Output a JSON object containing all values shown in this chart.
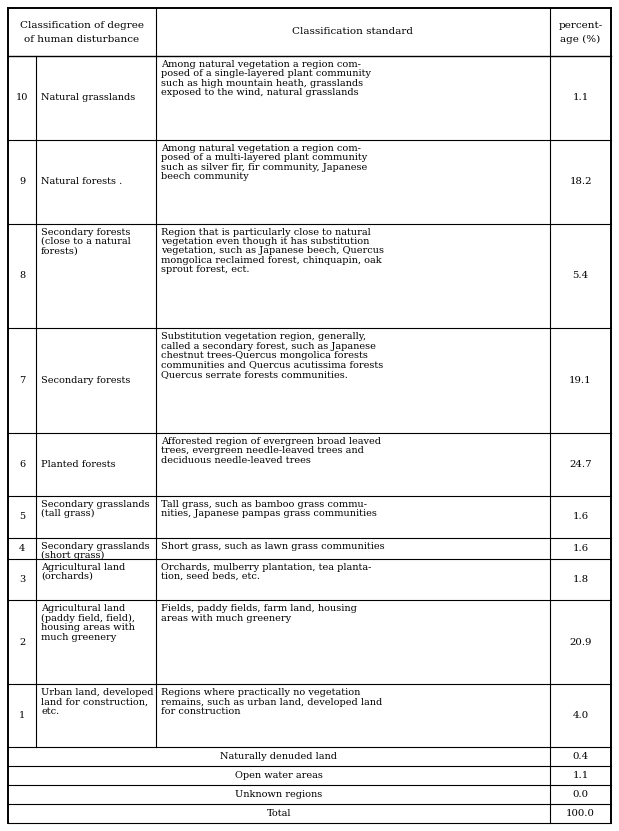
{
  "col_header_left": "Classification of degree\nof human disturbance",
  "col_header_mid": "Classification standard",
  "col_header_right": "percent-\nage (%)",
  "rows": [
    {
      "degree": "10",
      "name": "Natural grasslands",
      "standard": "Among natural vegetation a region com-\nposed of a single-layered plant community\nsuch as high mountain heath, grasslands\nexposed to the wind, natural grasslands",
      "pct": "1.1",
      "std_italic_parts": []
    },
    {
      "degree": "9",
      "name": "Natural forests .",
      "standard": "Among natural vegetation a region com-\nposed of a multi-layered plant community\nsuch as silver fir, fir community, Japanese\nbeech community",
      "pct": "18.2",
      "std_italic_parts": []
    },
    {
      "degree": "8",
      "name": "Secondary forests\n(close to a natural\nforests)",
      "standard": "Region that is particularly close to natural\nvegetation even though it has substitution\nvegetation, such as Japanese beech, Quercus\nmongolica reclaimed forest, chinquapin, oak\nsprout forest, ect.",
      "pct": "5.4",
      "std_italic_parts": []
    },
    {
      "degree": "7",
      "name": "Secondary forests",
      "standard": "Substitution vegetation region, generally,\ncalled a secondary forest, such as Japanese\nchestnut trees-Quercus mongolica forests\ncommunities and Quercus acutissima forests\nQuercus serrate forests communities.",
      "pct": "19.1",
      "std_italic_parts": []
    },
    {
      "degree": "6",
      "name": "Planted forests",
      "standard": "Afforested region of evergreen broad leaved\ntrees, evergreen needle-leaved trees and\ndeciduous needle-leaved trees",
      "pct": "24.7",
      "std_italic_parts": []
    },
    {
      "degree": "5",
      "name": "Secondary grasslands\n(tall grass)",
      "standard": "Tall grass, such as bamboo grass commu-\nnities, Japanese pampas grass communities",
      "pct": "1.6",
      "std_italic_parts": []
    },
    {
      "degree": "4",
      "name": "Secondary grasslands\n(short grass)",
      "standard": "Short grass, such as lawn grass communities",
      "pct": "1.6",
      "std_italic_parts": []
    },
    {
      "degree": "3",
      "name": "Agricultural land\n(orchards)",
      "standard": "Orchards, mulberry plantation, tea planta-\ntion, seed beds, etc.",
      "pct": "1.8",
      "std_italic_parts": []
    },
    {
      "degree": "2",
      "name": "Agricultural land\n(paddy field, field),\nhousing areas with\nmuch greenery",
      "standard": "Fields, paddy fields, farm land, housing\nareas with much greenery",
      "pct": "20.9",
      "std_italic_parts": []
    },
    {
      "degree": "1",
      "name": "Urban land, developed\nland for construction,\netc.",
      "standard": "Regions where practically no vegetation\nremains, such as urban land, developed land\nfor construction",
      "pct": "4.0",
      "std_italic_parts": []
    },
    {
      "degree": "",
      "name": "Naturally denuded land",
      "standard": "",
      "pct": "0.4"
    },
    {
      "degree": "",
      "name": "Open water areas",
      "standard": "",
      "pct": "1.1"
    },
    {
      "degree": "",
      "name": "Unknown regions",
      "standard": "",
      "pct": "0.0"
    },
    {
      "degree": "",
      "name": "Total",
      "standard": "",
      "pct": "100.0"
    }
  ],
  "bg_color": "#ffffff",
  "font_size": 7.0,
  "header_font_size": 7.5,
  "row_line_counts": [
    4,
    4,
    5,
    5,
    3,
    2,
    1,
    2,
    4,
    3,
    1,
    1,
    1,
    1
  ]
}
